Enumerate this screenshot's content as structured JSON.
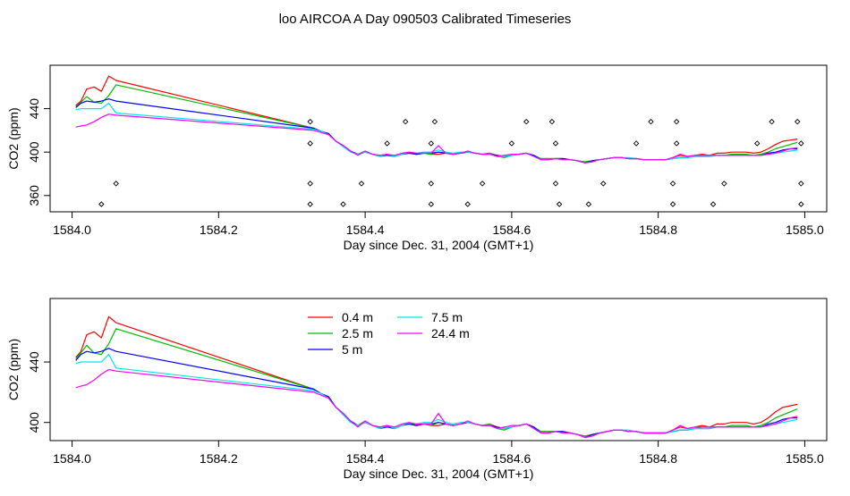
{
  "title": "loo AIRCOA A  Day 090503  Calibrated Timeseries",
  "colors": {
    "0.4 m": "#ff0000",
    "2.5 m": "#00bb00",
    "5 m": "#0000ff",
    "7.5 m": "#00e5e5",
    "24.4 m": "#ff00ff"
  },
  "chart_data": [
    {
      "type": "line",
      "xlabel": "Day since Dec. 31, 2004 (GMT+1)",
      "ylabel": "CO2 (ppm)",
      "xlim": [
        1583.97,
        1585.03
      ],
      "ylim": [
        345,
        480
      ],
      "xticks": [
        1584.0,
        1584.2,
        1584.4,
        1584.6,
        1584.8,
        1585.0
      ],
      "xtick_labels": [
        "1584.0",
        "1584.2",
        "1584.4",
        "1584.6",
        "1584.8",
        "1585.0"
      ],
      "yticks": [
        360,
        400,
        440
      ],
      "ytick_labels": [
        "360",
        "400",
        "440"
      ],
      "legend": false,
      "x": [
        1584.005,
        1584.012,
        1584.02,
        1584.03,
        1584.04,
        1584.05,
        1584.06,
        1584.33,
        1584.34,
        1584.35,
        1584.36,
        1584.37,
        1584.38,
        1584.39,
        1584.4,
        1584.41,
        1584.42,
        1584.43,
        1584.44,
        1584.45,
        1584.46,
        1584.47,
        1584.48,
        1584.49,
        1584.5,
        1584.51,
        1584.52,
        1584.53,
        1584.54,
        1584.55,
        1584.56,
        1584.57,
        1584.58,
        1584.59,
        1584.6,
        1584.61,
        1584.62,
        1584.63,
        1584.64,
        1584.65,
        1584.66,
        1584.67,
        1584.68,
        1584.69,
        1584.7,
        1584.71,
        1584.72,
        1584.73,
        1584.74,
        1584.75,
        1584.76,
        1584.77,
        1584.78,
        1584.79,
        1584.8,
        1584.81,
        1584.82,
        1584.83,
        1584.84,
        1584.85,
        1584.86,
        1584.87,
        1584.88,
        1584.89,
        1584.9,
        1584.91,
        1584.92,
        1584.93,
        1584.94,
        1584.95,
        1584.96,
        1584.97,
        1584.98,
        1584.99
      ],
      "series": [
        {
          "name": "0.4 m",
          "values": [
            443,
            447,
            458,
            460,
            456,
            470,
            466,
            422,
            419,
            417,
            410,
            406,
            401,
            398,
            400,
            398,
            397,
            398,
            396,
            398,
            399,
            398,
            399,
            398,
            398,
            399,
            398,
            399,
            400,
            399,
            398,
            399,
            397,
            396,
            397,
            398,
            399,
            397,
            394,
            394,
            394,
            394,
            393,
            392,
            391,
            392,
            393,
            394,
            395,
            395,
            394,
            394,
            393,
            393,
            393,
            393,
            395,
            397,
            396,
            397,
            398,
            397,
            399,
            399,
            400,
            400,
            400,
            399,
            400,
            403,
            407,
            410,
            411,
            412
          ]
        },
        {
          "name": "2.5 m",
          "values": [
            442,
            446,
            451,
            446,
            445,
            452,
            462,
            422,
            419,
            417,
            410,
            406,
            401,
            398,
            401,
            398,
            397,
            398,
            396,
            398,
            400,
            398,
            399,
            398,
            400,
            399,
            398,
            399,
            400,
            399,
            398,
            399,
            396,
            395,
            397,
            398,
            399,
            397,
            394,
            394,
            394,
            394,
            393,
            392,
            391,
            392,
            393,
            394,
            395,
            395,
            394,
            394,
            393,
            393,
            393,
            393,
            394,
            395,
            395,
            396,
            397,
            397,
            397,
            397,
            398,
            398,
            398,
            397,
            398,
            400,
            403,
            405,
            407,
            409
          ]
        },
        {
          "name": "5 m",
          "values": [
            441,
            445,
            447,
            446,
            447,
            449,
            447,
            422,
            419,
            417,
            410,
            406,
            401,
            398,
            400,
            398,
            396,
            397,
            396,
            398,
            399,
            398,
            399,
            399,
            400,
            399,
            398,
            399,
            400,
            399,
            398,
            398,
            397,
            396,
            397,
            398,
            399,
            397,
            393,
            393,
            394,
            394,
            393,
            392,
            390,
            392,
            393,
            394,
            395,
            395,
            394,
            394,
            393,
            393,
            393,
            393,
            394,
            395,
            395,
            396,
            396,
            396,
            397,
            397,
            397,
            397,
            397,
            397,
            397,
            399,
            400,
            402,
            403,
            403
          ]
        },
        {
          "name": "7.5 m",
          "values": [
            439,
            440,
            440,
            440,
            440,
            445,
            436,
            421,
            419,
            416,
            410,
            405,
            400,
            398,
            400,
            398,
            396,
            398,
            396,
            398,
            400,
            399,
            400,
            400,
            402,
            400,
            399,
            400,
            400,
            399,
            398,
            398,
            396,
            396,
            397,
            398,
            399,
            396,
            393,
            393,
            394,
            393,
            393,
            392,
            390,
            391,
            393,
            394,
            395,
            395,
            395,
            394,
            393,
            393,
            393,
            393,
            394,
            395,
            395,
            396,
            396,
            396,
            397,
            397,
            397,
            397,
            397,
            397,
            397,
            398,
            399,
            400,
            401,
            402
          ]
        },
        {
          "name": "24.4 m",
          "values": [
            423,
            424,
            425,
            428,
            432,
            435,
            434,
            420,
            418,
            416,
            410,
            406,
            401,
            397,
            401,
            398,
            397,
            398,
            397,
            399,
            400,
            399,
            399,
            399,
            406,
            399,
            398,
            399,
            401,
            399,
            398,
            398,
            396,
            397,
            398,
            398,
            399,
            396,
            393,
            393,
            394,
            393,
            393,
            392,
            390,
            391,
            393,
            394,
            395,
            395,
            394,
            394,
            393,
            393,
            393,
            393,
            395,
            398,
            396,
            397,
            397,
            397,
            397,
            397,
            397,
            397,
            397,
            397,
            397,
            398,
            399,
            401,
            403,
            404
          ]
        }
      ],
      "markers": {
        "name": "diamond markers",
        "points": [
          [
            1584.04,
            352
          ],
          [
            1584.06,
            371
          ],
          [
            1584.325,
            352
          ],
          [
            1584.325,
            371
          ],
          [
            1584.325,
            408
          ],
          [
            1584.325,
            428
          ],
          [
            1584.37,
            352
          ],
          [
            1584.395,
            371
          ],
          [
            1584.43,
            408
          ],
          [
            1584.455,
            428
          ],
          [
            1584.49,
            352
          ],
          [
            1584.49,
            371
          ],
          [
            1584.49,
            408
          ],
          [
            1584.495,
            428
          ],
          [
            1584.54,
            352
          ],
          [
            1584.56,
            371
          ],
          [
            1584.6,
            408
          ],
          [
            1584.62,
            428
          ],
          [
            1584.655,
            428
          ],
          [
            1584.66,
            408
          ],
          [
            1584.66,
            371
          ],
          [
            1584.665,
            352
          ],
          [
            1584.705,
            352
          ],
          [
            1584.725,
            371
          ],
          [
            1584.77,
            408
          ],
          [
            1584.79,
            428
          ],
          [
            1584.82,
            352
          ],
          [
            1584.82,
            371
          ],
          [
            1584.825,
            408
          ],
          [
            1584.825,
            428
          ],
          [
            1584.875,
            352
          ],
          [
            1584.89,
            371
          ],
          [
            1584.935,
            408
          ],
          [
            1584.955,
            428
          ],
          [
            1584.99,
            428
          ],
          [
            1584.995,
            408
          ],
          [
            1584.995,
            371
          ],
          [
            1584.995,
            352
          ]
        ]
      }
    },
    {
      "type": "line",
      "xlabel": "Day since Dec. 31, 2004 (GMT+1)",
      "ylabel": "CO2 (ppm)",
      "xlim": [
        1583.97,
        1585.03
      ],
      "ylim": [
        388,
        482
      ],
      "xticks": [
        1584.0,
        1584.2,
        1584.4,
        1584.6,
        1584.8,
        1585.0
      ],
      "xtick_labels": [
        "1584.0",
        "1584.2",
        "1584.4",
        "1584.6",
        "1584.8",
        "1585.0"
      ],
      "yticks": [
        400,
        440
      ],
      "ytick_labels": [
        "400",
        "440"
      ],
      "legend": "top-center",
      "legend_entries": [
        "0.4 m",
        "2.5 m",
        "5 m",
        "7.5 m",
        "24.4 m"
      ],
      "series_ref": "same series as chart 1"
    }
  ]
}
